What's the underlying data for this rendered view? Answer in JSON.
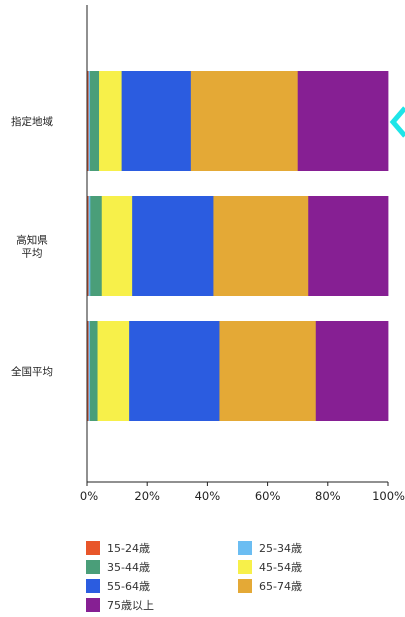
{
  "chart_data": {
    "type": "bar",
    "orientation": "horizontal",
    "stacked": true,
    "normalized": true,
    "categories": [
      "指定地域",
      "高知県\n平均",
      "全国平均"
    ],
    "xlim": [
      0,
      100
    ],
    "x_ticks": [
      "0%",
      "20%",
      "40%",
      "60%",
      "80%",
      "100%"
    ],
    "legend_position": "bottom",
    "grid": false,
    "series": [
      {
        "name": "15-24歳",
        "color": "#e8562a",
        "values": [
          0.5,
          0.5,
          0.5
        ]
      },
      {
        "name": "25-34歳",
        "color": "#6bbdf2",
        "values": [
          0.5,
          0.6,
          0.5
        ]
      },
      {
        "name": "35-44歳",
        "color": "#4a9e79",
        "values": [
          3.0,
          3.8,
          2.5
        ]
      },
      {
        "name": "45-54歳",
        "color": "#f7f04a",
        "values": [
          7.5,
          10.1,
          10.5
        ]
      },
      {
        "name": "55-64歳",
        "color": "#2b5ce0",
        "values": [
          23.0,
          27.0,
          30.0
        ]
      },
      {
        "name": "65-74歳",
        "color": "#e4a936",
        "values": [
          35.5,
          31.5,
          32.0
        ]
      },
      {
        "name": "75歳以上",
        "color": "#861f93",
        "values": [
          30.0,
          26.5,
          24.0
        ]
      }
    ]
  },
  "annotation": {
    "symbol": "<",
    "color": "#1ee5e8"
  }
}
